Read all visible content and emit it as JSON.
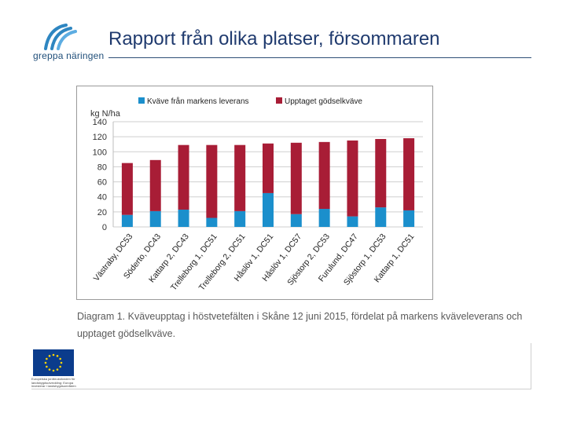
{
  "header": {
    "title": "Rapport från olika platser, försommaren",
    "logo_text": "greppa näringen"
  },
  "caption": "Diagram 1. Kväveupptag i höstvetefälten i Skåne 12 juni 2015, fördelat på markens kväveleverans och upptaget gödselkväve.",
  "footer": {
    "eu_text": "Europeiska jordbruksfonden för landsbygdsutveckling: Europa investerar i landsbygdsområden"
  },
  "colors": {
    "soil": "#1b8fcc",
    "fertilizer": "#a81d36",
    "title": "#1f3a6e"
  },
  "chart_data": {
    "type": "bar",
    "stacked": true,
    "ylabel": "kg N/ha",
    "ylim": [
      0,
      140
    ],
    "yticks": [
      0,
      20,
      40,
      60,
      80,
      100,
      120,
      140
    ],
    "grid": true,
    "legend_position": "top",
    "categories": [
      "Västraby, DC53",
      "Söderto, DC43",
      "Kattarp 2, DC43",
      "Trelleborg 1, DC51",
      "Trelleborg 2, DC51",
      "Håslöv 1, DC51",
      "Håslöv 1, DC57",
      "Sjöstorp 2, DC53",
      "Furulund, DC47",
      "Sjöstorp 1, DC53",
      "Kattarp 1, DC51"
    ],
    "series": [
      {
        "name": "Kväve från markens leverans",
        "values": [
          16,
          21,
          23,
          12,
          21,
          45,
          17,
          24,
          14,
          26,
          22
        ]
      },
      {
        "name": "Upptaget gödselkväve",
        "values": [
          69,
          68,
          86,
          97,
          88,
          66,
          95,
          89,
          101,
          91,
          96
        ]
      }
    ]
  }
}
